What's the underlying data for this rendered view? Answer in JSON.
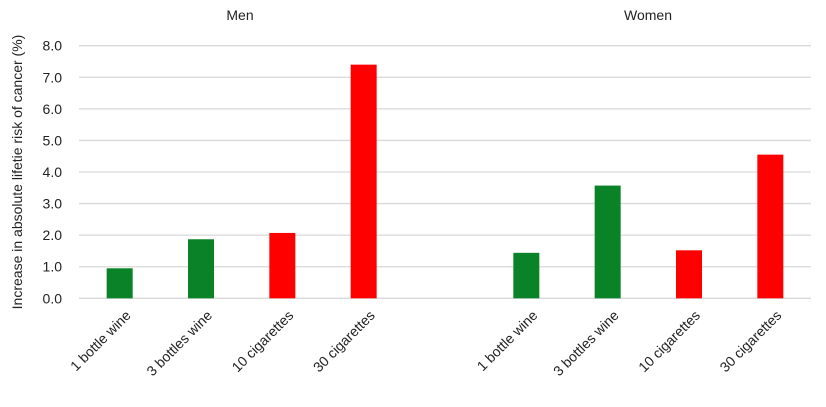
{
  "chart_data": {
    "type": "bar",
    "ylabel": "Increase in absolute lifetie risk of cancer (%)",
    "ylim": [
      0,
      8
    ],
    "yticks": [
      "0.0",
      "1.0",
      "2.0",
      "3.0",
      "4.0",
      "5.0",
      "6.0",
      "7.0",
      "8.0"
    ],
    "grid": true,
    "colors": {
      "wine": "#0a8228",
      "cigarettes": "#ff0000",
      "grid": "#d9d9d9"
    },
    "panels": [
      {
        "title": "Men",
        "categories": [
          "1 bottle wine",
          "3 bottles wine",
          "10 cigarettes",
          "30 cigarettes"
        ],
        "values": [
          0.95,
          1.87,
          2.07,
          7.4
        ],
        "colors": [
          "wine",
          "wine",
          "cigarettes",
          "cigarettes"
        ]
      },
      {
        "title": "Women",
        "categories": [
          "1 bottle wine",
          "3 bottles wine",
          "10 cigarettes",
          "30 cigarettes"
        ],
        "values": [
          1.44,
          3.57,
          1.52,
          4.55
        ],
        "colors": [
          "wine",
          "wine",
          "cigarettes",
          "cigarettes"
        ]
      }
    ]
  }
}
